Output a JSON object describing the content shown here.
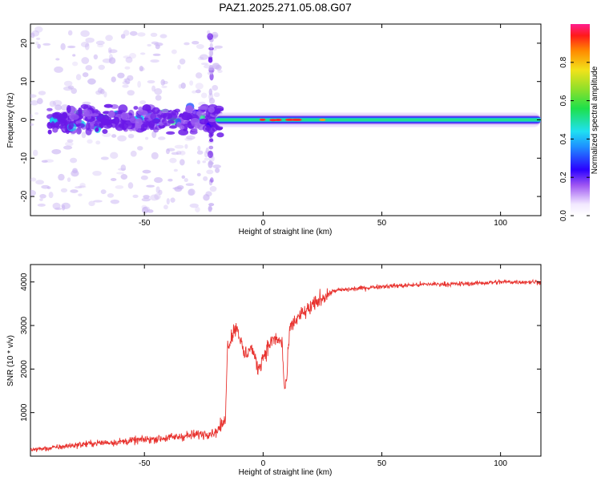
{
  "title": "PAZ1.2025.271.05.08.G07",
  "colors": {
    "snr_line": "#e8332f",
    "ridge_mid": "#22e28a",
    "ridge_core": "#ff2a2a",
    "blob_light": "#cbb6f3",
    "blob_dark": "#6a18e8"
  },
  "chart_data": [
    {
      "id": "spectrogram",
      "type": "heatmap",
      "xlabel": "Height of straight line (km)",
      "ylabel": "Frequency (Hz)",
      "xlim": [
        -98,
        117
      ],
      "ylim": [
        -25,
        25
      ],
      "xticks": [
        -50,
        0,
        50,
        100
      ],
      "yticks": [
        -20,
        -10,
        0,
        10,
        20
      ],
      "grid": false,
      "ridge": {
        "x_start": -20,
        "x_end": 117,
        "center_hz": 0,
        "peak_x": [
          -5,
          15
        ]
      },
      "colorbar": {
        "label": "Normalized spectral amplitude",
        "range": [
          0,
          1
        ],
        "ticks": [
          0.0,
          0.2,
          0.4,
          0.6,
          0.8
        ]
      }
    },
    {
      "id": "snr",
      "type": "line",
      "xlabel": "Height of straight line (km)",
      "ylabel": "SNR (10 * v/v)",
      "xlim": [
        -98,
        117
      ],
      "ylim": [
        0,
        4400
      ],
      "xticks": [
        -50,
        0,
        50,
        100
      ],
      "yticks": [
        1000,
        2000,
        3000,
        4000
      ],
      "grid": false,
      "series": [
        {
          "color": "#e8332f",
          "x": [
            -98,
            -90,
            -80,
            -70,
            -60,
            -50,
            -40,
            -30,
            -20,
            -16,
            -15,
            -13,
            -11,
            -8,
            -5,
            -2,
            0,
            3,
            5,
            8,
            9,
            10,
            11,
            12,
            15,
            20,
            25,
            30,
            40,
            50,
            60,
            70,
            80,
            90,
            100,
            110,
            117
          ],
          "y": [
            150,
            180,
            250,
            300,
            330,
            380,
            420,
            480,
            550,
            800,
            2500,
            2800,
            3000,
            2300,
            2500,
            2000,
            2300,
            2600,
            2700,
            2600,
            1500,
            1800,
            2800,
            3000,
            3200,
            3400,
            3650,
            3800,
            3850,
            3900,
            3920,
            3950,
            3950,
            3970,
            4000,
            4000,
            4000
          ]
        }
      ]
    }
  ]
}
